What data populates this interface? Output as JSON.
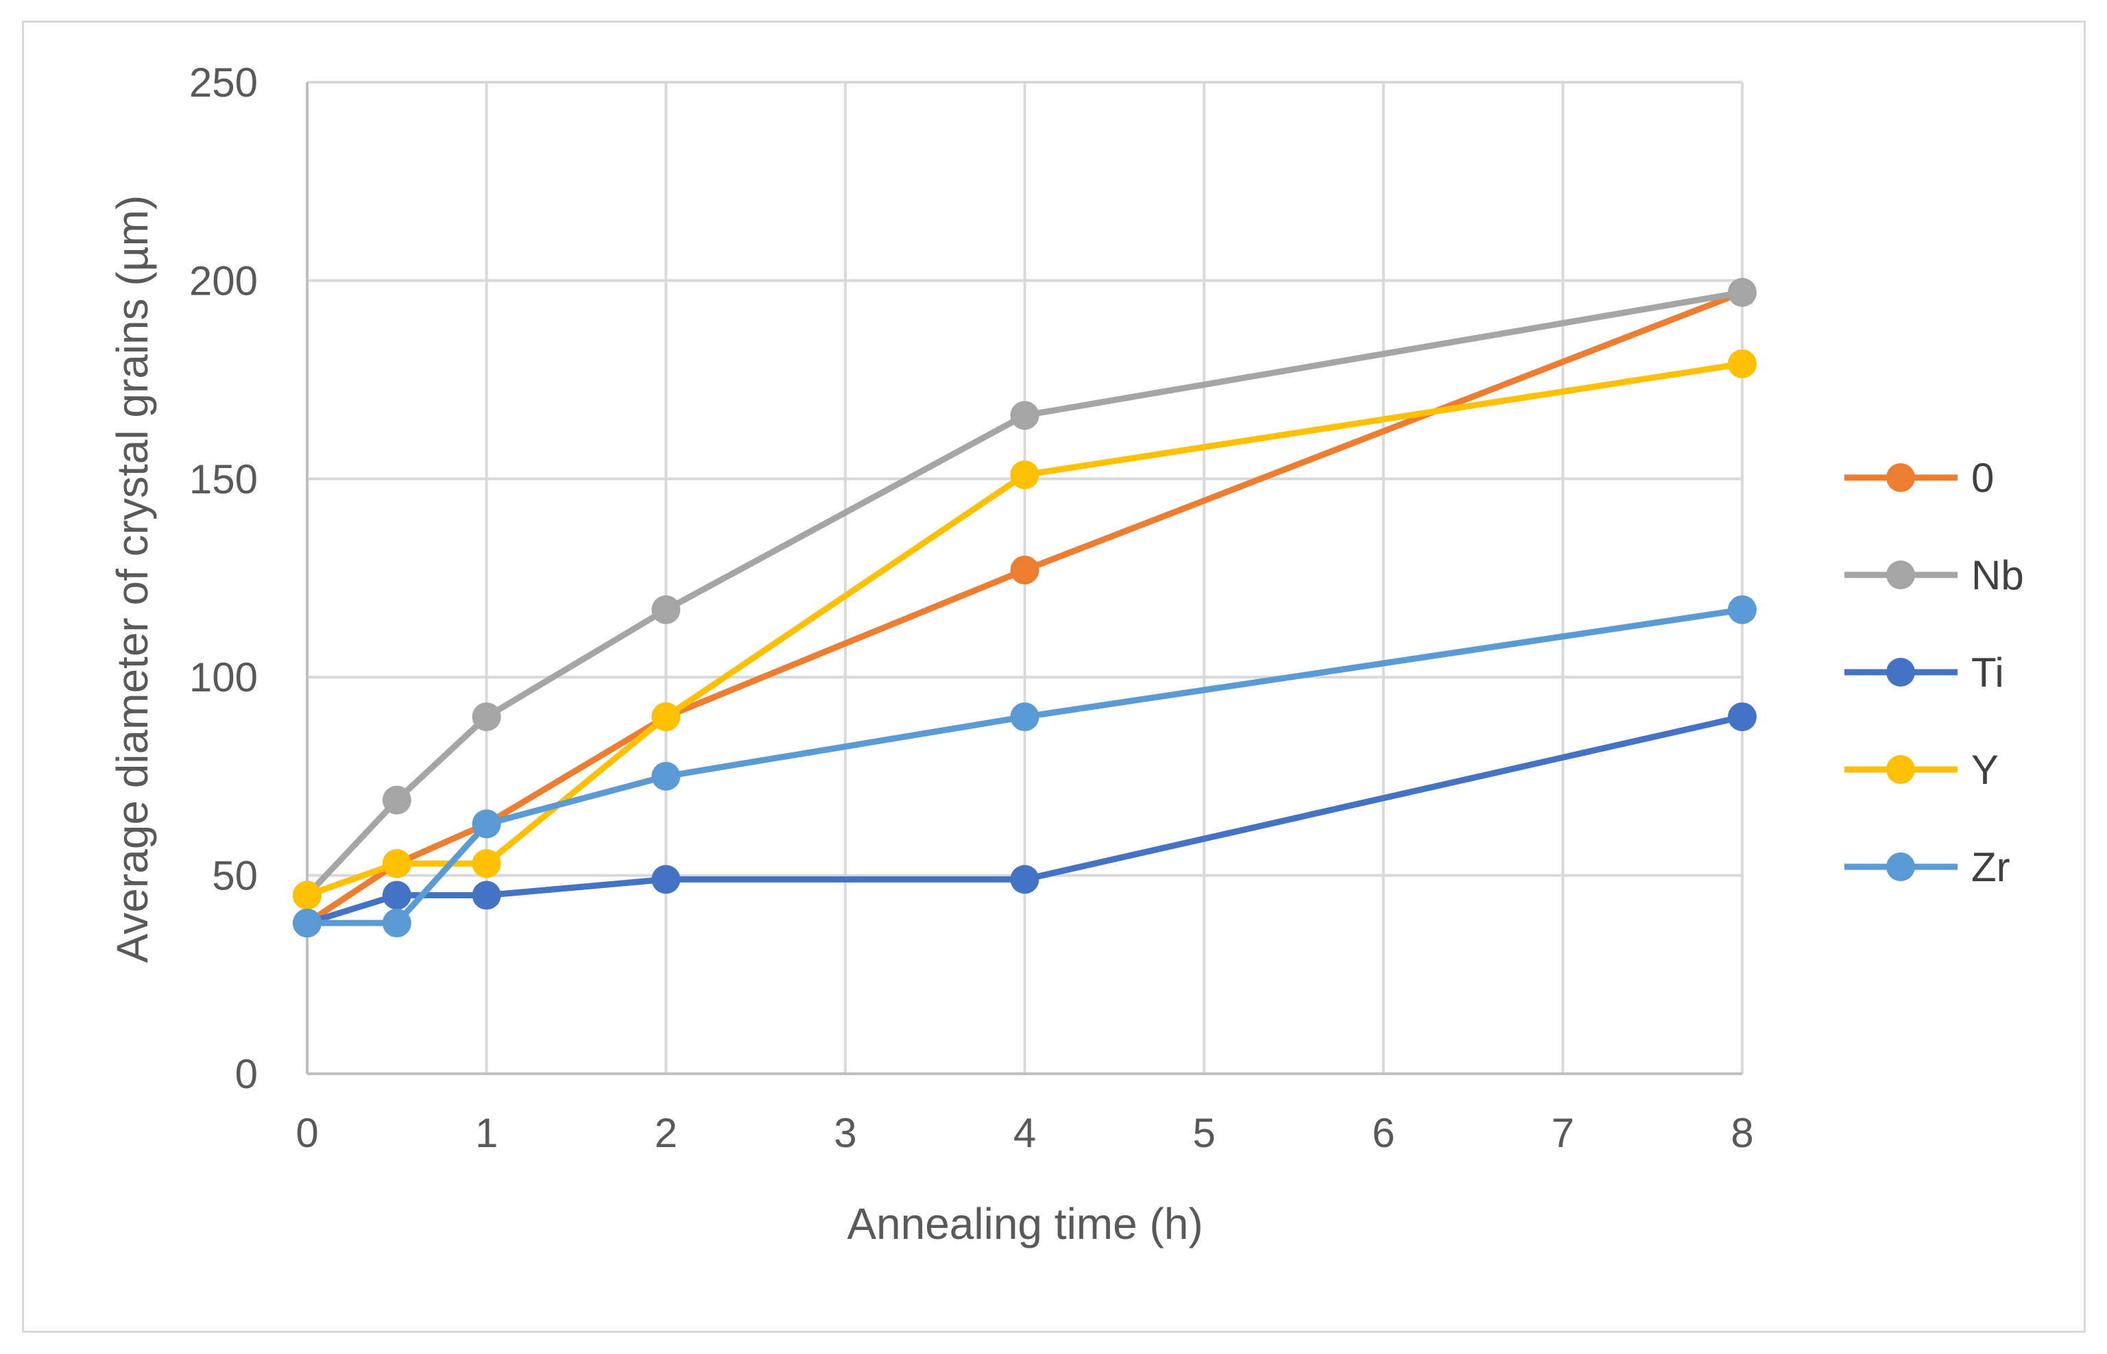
{
  "chart_data": {
    "type": "line",
    "title": "",
    "xlabel": "Annealing time (h)",
    "ylabel": "Average diameter of crystal grains (µm)",
    "xlim": [
      0,
      8
    ],
    "ylim": [
      0,
      250
    ],
    "x_ticks": [
      0,
      1,
      2,
      3,
      4,
      5,
      6,
      7,
      8
    ],
    "y_ticks": [
      0,
      50,
      100,
      150,
      200,
      250
    ],
    "grid": true,
    "legend_position": "right",
    "x": [
      0,
      0.5,
      1,
      2,
      4,
      8
    ],
    "series": [
      {
        "name": "0",
        "color": "#ed7d31",
        "values": [
          38,
          53,
          63,
          90,
          127,
          197
        ]
      },
      {
        "name": "Nb",
        "color": "#a5a5a5",
        "values": [
          45,
          69,
          90,
          117,
          166,
          197
        ]
      },
      {
        "name": "Ti",
        "color": "#4472c4",
        "values": [
          38,
          45,
          45,
          49,
          49,
          90
        ]
      },
      {
        "name": "Y",
        "color": "#ffc000",
        "values": [
          45,
          53,
          53,
          90,
          151,
          179
        ]
      },
      {
        "name": "Zr",
        "color": "#5b9bd5",
        "values": [
          38,
          38,
          63,
          75,
          90,
          117
        ]
      }
    ]
  },
  "colors": {
    "grid": "#d9d9d9",
    "axis": "#bfbfbf",
    "text": "#595959"
  }
}
